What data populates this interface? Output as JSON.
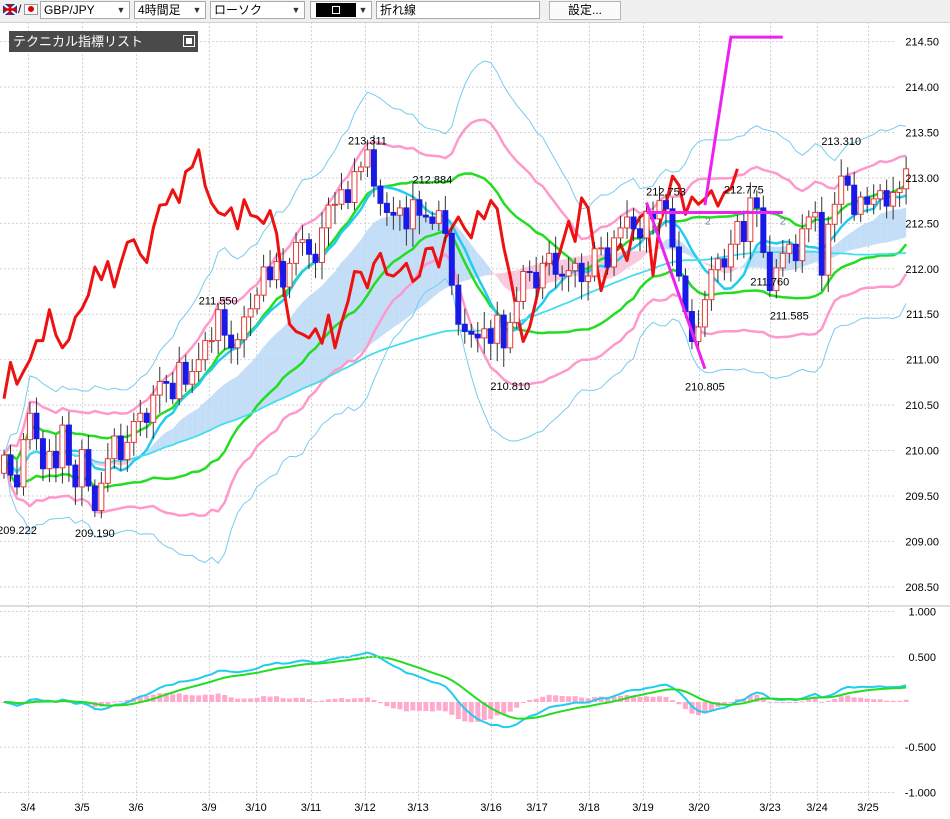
{
  "toolbar": {
    "symbol": "GBP/JPY",
    "timeframe": "4時間足",
    "chart_style": "ローソク",
    "draw_tool": "折れ線",
    "settings_button": "設定..."
  },
  "indicator_panel": {
    "title": "テクニカル指標リスト"
  },
  "chart_data": [
    {
      "type": "candlestick",
      "title": "",
      "y_ticks": [
        214.5,
        214.0,
        213.5,
        213.0,
        212.5,
        212.0,
        211.5,
        211.0,
        210.5,
        210.0,
        209.5,
        209.0,
        208.5
      ],
      "y_range": [
        208.3,
        214.65
      ],
      "x_labels": [
        "3/4",
        "3/5",
        "3/6",
        "3/9",
        "3/10",
        "3/11",
        "3/12",
        "3/13",
        "3/16",
        "3/17",
        "3/18",
        "3/19",
        "3/20",
        "3/23",
        "3/24",
        "3/25"
      ],
      "annotations": [
        {
          "text": "209.222",
          "value": 209.222
        },
        {
          "text": "209.190",
          "value": 209.19
        },
        {
          "text": "211.550",
          "value": 211.55
        },
        {
          "text": "213.311",
          "value": 213.311
        },
        {
          "text": "212.884",
          "value": 212.884
        },
        {
          "text": "210.810",
          "value": 210.81
        },
        {
          "text": "212.753",
          "value": 212.753
        },
        {
          "text": "210.805",
          "value": 210.805
        },
        {
          "text": "212.775",
          "value": 212.775
        },
        {
          "text": "211.760",
          "value": 211.76
        },
        {
          "text": "211.585",
          "value": 211.585
        },
        {
          "text": "213.310",
          "value": 213.31
        }
      ],
      "trendline_markers": [
        "2",
        "2"
      ],
      "colors": {
        "up_candle": "#e53935",
        "down_candle": "#1a1ae6",
        "ma_short": "#22ccee",
        "ma_mid": "#22dd22",
        "ma_long": "#44ddee",
        "bollinger_2": "#ff99cc",
        "bollinger_3": "#77ccee",
        "line_red": "#ee1111",
        "trendline": "#ee22ee",
        "cloud_up": "#b8d8f5",
        "cloud_down": "#f8c0d8"
      },
      "series": [
        {
          "name": "close",
          "values": [
            209.95,
            209.73,
            209.6,
            210.12,
            210.41,
            210.13,
            209.8,
            209.99,
            209.81,
            210.28,
            209.84,
            209.6,
            210.01,
            209.61,
            209.34,
            209.64,
            209.91,
            210.16,
            209.9,
            210.09,
            210.32,
            210.41,
            210.31,
            210.61,
            210.76,
            210.74,
            210.57,
            210.97,
            210.73,
            210.87,
            211.0,
            211.21,
            211.21,
            211.55,
            211.27,
            211.13,
            211.22,
            211.47,
            211.56,
            211.71,
            212.02,
            211.88,
            212.08,
            211.8,
            212.06,
            212.29,
            212.32,
            212.16,
            212.07,
            212.45,
            212.7,
            212.71,
            212.87,
            212.73,
            213.07,
            213.12,
            213.31,
            212.91,
            212.72,
            212.62,
            212.59,
            212.67,
            212.44,
            212.76,
            212.59,
            212.57,
            212.5,
            212.64,
            212.39,
            211.82,
            211.39,
            211.31,
            211.28,
            211.24,
            211.34,
            211.18,
            211.49,
            211.13,
            211.41,
            211.64,
            211.97,
            211.96,
            211.79,
            212.06,
            212.17,
            211.94,
            211.92,
            211.98,
            212.06,
            211.86,
            211.92,
            212.22,
            212.23,
            212.02,
            212.34,
            212.45,
            212.57,
            212.44,
            212.34,
            212.63,
            212.55,
            212.75,
            212.66,
            212.24,
            211.92,
            211.53,
            211.2,
            211.36,
            211.66,
            211.99,
            212.11,
            212.02,
            212.27,
            212.52,
            212.3,
            212.78,
            212.67,
            212.18,
            211.76,
            212.01,
            212.17,
            212.27,
            212.09,
            212.44,
            212.57,
            212.62,
            211.93,
            212.49,
            212.71,
            213.02,
            212.92,
            212.6,
            212.79,
            212.71,
            212.77,
            212.86,
            212.69,
            212.84,
            212.88,
            213.1
          ]
        }
      ]
    },
    {
      "type": "macd",
      "y_ticks": [
        1.0,
        0.5,
        -0.5,
        -1.0
      ],
      "y_range": [
        -1.05,
        1.05
      ],
      "series": [
        {
          "name": "macd",
          "color": "#22ccee"
        },
        {
          "name": "signal",
          "color": "#22dd22"
        },
        {
          "name": "histogram",
          "color": "#ffaacc"
        }
      ]
    }
  ]
}
